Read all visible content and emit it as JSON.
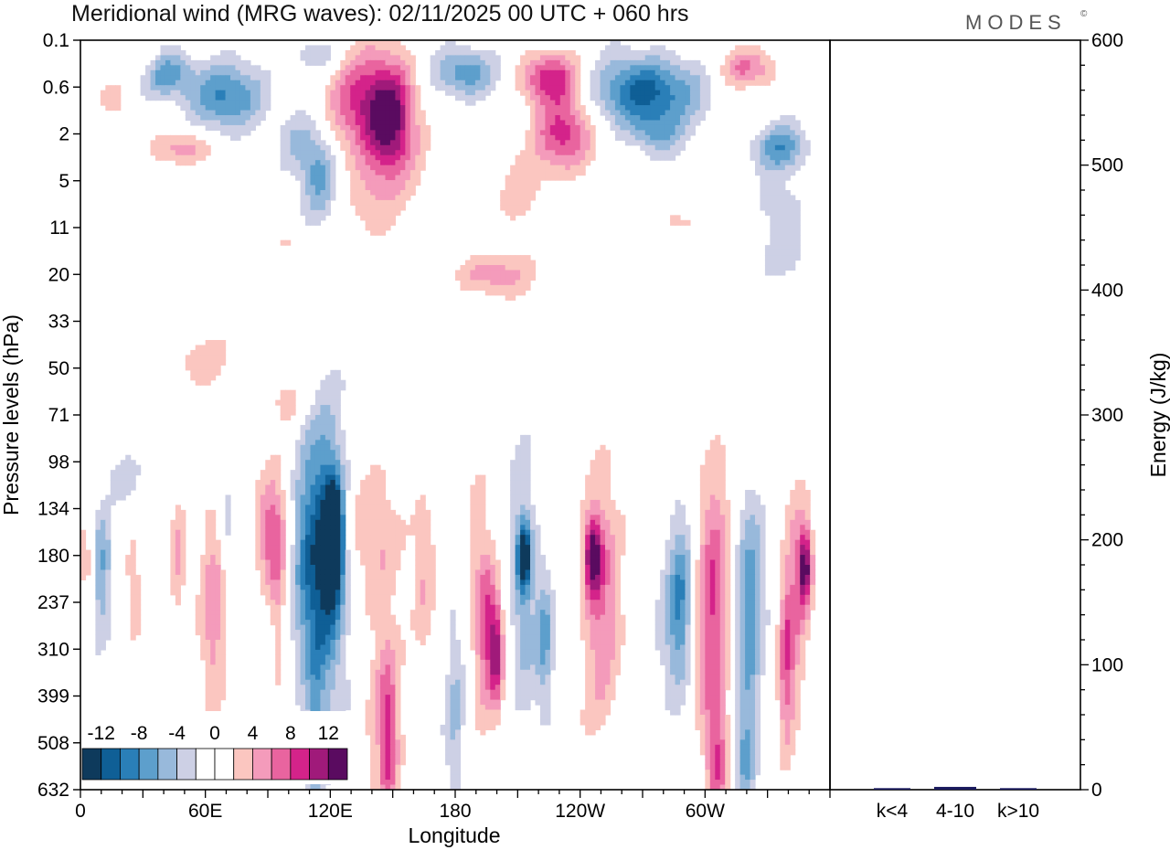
{
  "chart_data": [
    {
      "type": "heatmap",
      "title": "Meridional wind (MRG waves):  02/11/2025  00 UTC  + 060 hrs",
      "brand": "MODES",
      "brand_mark": "©",
      "xlabel": "Longitude",
      "ylabel": "Pressure levels (hPa)",
      "x_ticks": [
        "0",
        "60E",
        "120E",
        "180",
        "120W",
        "60W"
      ],
      "x_tick_values": [
        0,
        60,
        120,
        180,
        240,
        300
      ],
      "xlim": [
        0,
        360
      ],
      "y_ticks": [
        "0.1",
        "0.6",
        "2",
        "5",
        "11",
        "20",
        "33",
        "50",
        "71",
        "98",
        "134",
        "180",
        "237",
        "310",
        "399",
        "508",
        "632"
      ],
      "colorbar": {
        "labels": [
          "-12",
          "-8",
          "-4",
          "0",
          "4",
          "8",
          "12"
        ],
        "label_values": [
          -12,
          -8,
          -4,
          0,
          4,
          8,
          12
        ],
        "levels": [
          -14,
          -12,
          -10,
          -8,
          -6,
          -4,
          -2,
          0,
          2,
          4,
          6,
          8,
          10,
          12,
          14
        ],
        "colors": [
          "#0e3a5c",
          "#0f5f96",
          "#2a7fb8",
          "#5d9fcc",
          "#98b9db",
          "#cdd0e5",
          "#ffffff",
          "#ffffff",
          "#fbc6c0",
          "#f49bbb",
          "#e9649f",
          "#d4238a",
          "#a01a7a",
          "#5a0b60"
        ]
      },
      "anomalies": [
        {
          "lon": 15,
          "lev": 1.2,
          "rx": 8,
          "ry": 0.4,
          "v": 3
        },
        {
          "lon": 42,
          "lev": 0.7,
          "rx": 12,
          "ry": 0.5,
          "v": -7
        },
        {
          "lon": 70,
          "lev": 1.2,
          "rx": 20,
          "ry": 0.7,
          "v": -8
        },
        {
          "lon": 50,
          "lev": 2.3,
          "rx": 14,
          "ry": 0.35,
          "v": 5
        },
        {
          "lon": 105,
          "lev": 2.2,
          "rx": 12,
          "ry": 0.7,
          "v": -4
        },
        {
          "lon": 115,
          "lev": 3.0,
          "rx": 8,
          "ry": 0.9,
          "v": -6
        },
        {
          "lon": 135,
          "lev": 1.3,
          "rx": 18,
          "ry": 1.1,
          "v": 8
        },
        {
          "lon": 150,
          "lev": 1.9,
          "rx": 12,
          "ry": 1.3,
          "v": 11
        },
        {
          "lon": 140,
          "lev": 3.6,
          "rx": 10,
          "ry": 0.8,
          "v": 3
        },
        {
          "lon": 112,
          "lev": 0.3,
          "rx": 12,
          "ry": 0.4,
          "v": -4
        },
        {
          "lon": 185,
          "lev": 0.7,
          "rx": 14,
          "ry": 0.55,
          "v": -8
        },
        {
          "lon": 225,
          "lev": 0.8,
          "rx": 14,
          "ry": 0.55,
          "v": 9
        },
        {
          "lon": 233,
          "lev": 2.0,
          "rx": 14,
          "ry": 0.8,
          "v": 9
        },
        {
          "lon": 210,
          "lev": 3.2,
          "rx": 12,
          "ry": 0.8,
          "v": 3
        },
        {
          "lon": 272,
          "lev": 1.1,
          "rx": 24,
          "ry": 0.75,
          "v": -11
        },
        {
          "lon": 276,
          "lev": 2.0,
          "rx": 12,
          "ry": 0.5,
          "v": -5
        },
        {
          "lon": 320,
          "lev": 0.6,
          "rx": 14,
          "ry": 0.4,
          "v": 6
        },
        {
          "lon": 336,
          "lev": 2.3,
          "rx": 14,
          "ry": 0.5,
          "v": -7
        },
        {
          "lon": 338,
          "lev": 3.6,
          "rx": 12,
          "ry": 0.7,
          "v": -3
        },
        {
          "lon": 30,
          "lev": 0.4,
          "rx": 10,
          "ry": 0.3,
          "v": 3
        },
        {
          "lon": 197,
          "lev": 5.0,
          "rx": 20,
          "ry": 0.45,
          "v": 5
        },
        {
          "lon": 57,
          "lev": 6.8,
          "rx": 16,
          "ry": 0.5,
          "v": 3
        },
        {
          "lon": 100,
          "lev": 7.7,
          "rx": 10,
          "ry": 0.5,
          "v": 3
        },
        {
          "lon": 340,
          "lev": 4.7,
          "rx": 15,
          "ry": 0.6,
          "v": -3
        },
        {
          "lon": 288,
          "lev": 3.9,
          "rx": 10,
          "ry": 0.3,
          "v": 3
        },
        {
          "lon": 100,
          "lev": 4.3,
          "rx": 8,
          "ry": 0.2,
          "v": 3
        },
        {
          "lon": 20,
          "lev": 9.3,
          "rx": 8,
          "ry": 0.5,
          "v": -3
        },
        {
          "lon": 10,
          "lev": 11.3,
          "rx": 5,
          "ry": 1.4,
          "v": -6
        },
        {
          "lon": 25,
          "lev": 11.5,
          "rx": 5,
          "ry": 1.2,
          "v": 3
        },
        {
          "lon": 47,
          "lev": 11.2,
          "rx": 4,
          "ry": 1.5,
          "v": 4
        },
        {
          "lon": 60,
          "lev": 12.0,
          "rx": 6,
          "ry": 2.0,
          "v": 3
        },
        {
          "lon": 65,
          "lev": 11.8,
          "rx": 5,
          "ry": 2.4,
          "v": 4
        },
        {
          "lon": 70,
          "lev": 10.5,
          "rx": 4,
          "ry": 1.0,
          "v": -3
        },
        {
          "lon": 92,
          "lev": 10.5,
          "rx": 7,
          "ry": 1.2,
          "v": 7
        },
        {
          "lon": 95,
          "lev": 12.3,
          "rx": 4,
          "ry": 1.8,
          "v": 4
        },
        {
          "lon": 108,
          "lev": 11.0,
          "rx": 6,
          "ry": 2.5,
          "v": -4
        },
        {
          "lon": 115,
          "lev": 11.5,
          "rx": 12,
          "ry": 4.0,
          "v": -5
        },
        {
          "lon": 119,
          "lev": 11.0,
          "rx": 8,
          "ry": 2.2,
          "v": -10
        },
        {
          "lon": 122,
          "lev": 10.6,
          "rx": 4,
          "ry": 1.0,
          "v": -15
        },
        {
          "lon": 113,
          "lev": 14.8,
          "rx": 4,
          "ry": 2.2,
          "v": -4
        },
        {
          "lon": 140,
          "lev": 10.5,
          "rx": 22,
          "ry": 1.2,
          "v": 3
        },
        {
          "lon": 145,
          "lev": 13.7,
          "rx": 9,
          "ry": 3.0,
          "v": 4
        },
        {
          "lon": 148,
          "lev": 15.0,
          "rx": 4,
          "ry": 1.6,
          "v": 6
        },
        {
          "lon": 165,
          "lev": 11.5,
          "rx": 5,
          "ry": 2.0,
          "v": 3
        },
        {
          "lon": 180,
          "lev": 14.5,
          "rx": 5,
          "ry": 2.5,
          "v": -4
        },
        {
          "lon": 192,
          "lev": 11.8,
          "rx": 7,
          "ry": 2.5,
          "v": 4
        },
        {
          "lon": 196,
          "lev": 12.6,
          "rx": 5,
          "ry": 1.5,
          "v": 6
        },
        {
          "lon": 200,
          "lev": 13.1,
          "rx": 3,
          "ry": 1.1,
          "v": 8
        },
        {
          "lon": 213,
          "lev": 11.7,
          "rx": 7,
          "ry": 2.5,
          "v": -6
        },
        {
          "lon": 213,
          "lev": 11.0,
          "rx": 3,
          "ry": 0.7,
          "v": -11
        },
        {
          "lon": 223,
          "lev": 12.7,
          "rx": 4,
          "ry": 1.5,
          "v": -6
        },
        {
          "lon": 250,
          "lev": 11.7,
          "rx": 9,
          "ry": 3.0,
          "v": 6
        },
        {
          "lon": 246,
          "lev": 11.0,
          "rx": 4,
          "ry": 0.8,
          "v": 11
        },
        {
          "lon": 284,
          "lev": 12.5,
          "rx": 7,
          "ry": 2.0,
          "v": -4
        },
        {
          "lon": 289,
          "lev": 12.0,
          "rx": 5,
          "ry": 1.8,
          "v": -6
        },
        {
          "lon": 304,
          "lev": 12.2,
          "rx": 8,
          "ry": 3.2,
          "v": 8
        },
        {
          "lon": 306,
          "lev": 15.5,
          "rx": 5,
          "ry": 1.4,
          "v": 6
        },
        {
          "lon": 321,
          "lev": 12.3,
          "rx": 7,
          "ry": 3.0,
          "v": -7
        },
        {
          "lon": 319,
          "lev": 15.4,
          "rx": 5,
          "ry": 1.0,
          "v": -5
        },
        {
          "lon": 344,
          "lev": 11.6,
          "rx": 6,
          "ry": 2.5,
          "v": 5
        },
        {
          "lon": 348,
          "lev": 11.2,
          "rx": 3,
          "ry": 0.8,
          "v": 11
        },
        {
          "lon": 339,
          "lev": 13.4,
          "rx": 4,
          "ry": 2.0,
          "v": 6
        },
        {
          "lon": 3,
          "lev": 11.2,
          "rx": 4,
          "ry": 0.8,
          "v": 4
        }
      ]
    },
    {
      "type": "bar",
      "categories": [
        "k<4",
        "4-10",
        "k>10"
      ],
      "values": [
        0.5,
        1.5,
        0.5
      ],
      "ylabel": "Energy (J/kg)",
      "ylim": [
        0,
        600
      ],
      "y_ticks": [
        0,
        100,
        200,
        300,
        400,
        500,
        600
      ],
      "bar_color": "#1a1a5e"
    }
  ]
}
